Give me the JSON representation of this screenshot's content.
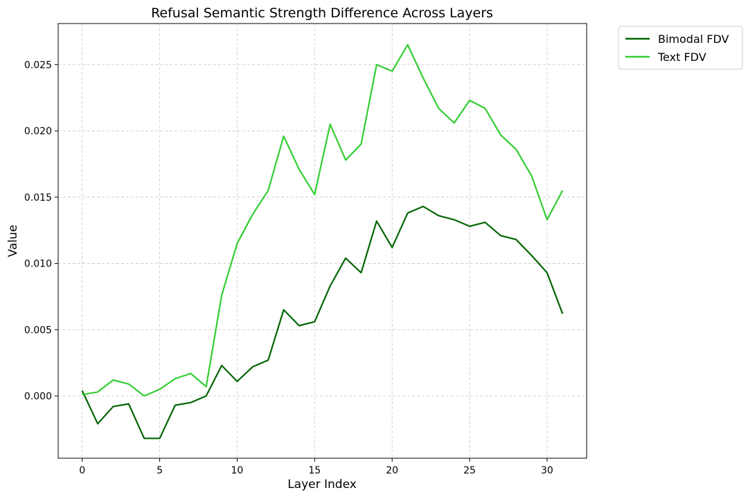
{
  "chart_data": {
    "type": "line",
    "title": "Refusal Semantic Strength Difference Across Layers",
    "xlabel": "Layer Index",
    "ylabel": "Value",
    "xlim": [
      -1.55,
      32.55
    ],
    "ylim": [
      -0.0047,
      0.0281
    ],
    "xticks": [
      0,
      5,
      10,
      15,
      20,
      25,
      30
    ],
    "yticks": [
      0.0,
      0.005,
      0.01,
      0.015,
      0.02,
      0.025
    ],
    "ytick_labels": [
      "0.000",
      "0.005",
      "0.010",
      "0.015",
      "0.020",
      "0.025"
    ],
    "grid": true,
    "legend_position": "outside-top-right",
    "x": [
      0,
      1,
      2,
      3,
      4,
      5,
      6,
      7,
      8,
      9,
      10,
      11,
      12,
      13,
      14,
      15,
      16,
      17,
      18,
      19,
      20,
      21,
      22,
      23,
      24,
      25,
      26,
      27,
      28,
      29,
      30,
      31
    ],
    "series": [
      {
        "name": "Bimodal FDV",
        "color": "#006400",
        "values": [
          0.0004,
          -0.0021,
          -0.0008,
          -0.0006,
          -0.0032,
          -0.0032,
          -0.0007,
          -0.0005,
          0.0,
          0.0023,
          0.0011,
          0.0022,
          0.0027,
          0.0065,
          0.0053,
          0.0056,
          0.0083,
          0.0104,
          0.0093,
          0.0132,
          0.0112,
          0.0138,
          0.0143,
          0.0136,
          0.0133,
          0.0128,
          0.0131,
          0.0121,
          0.0118,
          0.0106,
          0.0093,
          0.0062
        ]
      },
      {
        "name": "Text FDV",
        "color": "#32cd32",
        "values": [
          0.0001,
          0.0003,
          0.0012,
          0.0009,
          0.0,
          0.0005,
          0.0013,
          0.0017,
          0.0007,
          0.0076,
          0.0115,
          0.0137,
          0.0155,
          0.0196,
          0.0171,
          0.0152,
          0.0205,
          0.0178,
          0.019,
          0.025,
          0.0245,
          0.0265,
          0.024,
          0.0217,
          0.0206,
          0.0223,
          0.0217,
          0.0197,
          0.0186,
          0.0166,
          0.0133,
          0.0155
        ]
      }
    ]
  }
}
